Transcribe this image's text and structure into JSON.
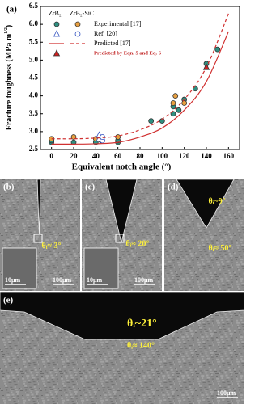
{
  "chart_data": {
    "type": "scatter",
    "panel_label": "(a)",
    "xlabel": "Equivalent notch angle (°)",
    "ylabel": [
      "Fracture toughness (MPa m",
      "1/2",
      ")"
    ],
    "xlim": [
      -10,
      170
    ],
    "xticks": [
      0,
      20,
      40,
      60,
      80,
      100,
      120,
      140,
      160
    ],
    "ylim": [
      2.5,
      6.5
    ],
    "yticks": [
      2.5,
      {
        "value": 3,
        "label": "3.0"
      },
      3.5,
      {
        "value": 4,
        "label": "4.0"
      },
      4.5,
      {
        "value": 5,
        "label": "5.0"
      },
      5.5,
      {
        "value": 6,
        "label": "6.0"
      },
      6.5
    ],
    "legend_headers": [
      "ZrB₂",
      "ZrB₂-SiC"
    ],
    "series": [
      {
        "name": "Experimental [17]",
        "type": "scatter",
        "marker": "circle",
        "filled": true,
        "color": "#2f8f80",
        "x": [
          0,
          0,
          20,
          40,
          45,
          60,
          60,
          90,
          100,
          110,
          110,
          115,
          120,
          130,
          140,
          150
        ],
        "values": [
          2.7,
          2.75,
          2.7,
          2.7,
          2.75,
          2.7,
          2.75,
          3.3,
          3.3,
          3.5,
          3.7,
          3.6,
          3.9,
          4.2,
          4.9,
          5.3
        ]
      },
      {
        "name": "Experimental [17]",
        "type": "scatter",
        "marker": "circle",
        "filled": true,
        "color": "#e8a040",
        "x": [
          0,
          20,
          40,
          60,
          110,
          112,
          120
        ],
        "values": [
          2.8,
          2.85,
          2.8,
          2.85,
          3.8,
          4.0,
          3.8
        ]
      },
      {
        "name": "Ref. [20]",
        "type": "scatter",
        "marker": "triangle",
        "filled": false,
        "color": "#3050c0",
        "x": [
          43,
          43
        ],
        "values": [
          2.8,
          2.9
        ]
      },
      {
        "name": "Ref. [20]",
        "type": "scatter",
        "marker": "circle",
        "filled": false,
        "color": "#3050c0",
        "x": [
          46,
          46
        ],
        "values": [
          2.75,
          2.85
        ]
      },
      {
        "name": "Predicted [17]",
        "type": "line",
        "dashed": false,
        "color": "#d03030",
        "x": [
          0,
          20,
          40,
          60,
          80,
          100,
          120,
          140,
          160
        ],
        "values": [
          2.65,
          2.65,
          2.66,
          2.7,
          2.85,
          3.1,
          3.6,
          4.4,
          5.8
        ]
      },
      {
        "name": "Predicted [17]",
        "type": "line",
        "dashed": true,
        "color": "#d03030",
        "x": [
          0,
          20,
          40,
          60,
          80,
          100,
          120,
          140,
          160
        ],
        "values": [
          2.8,
          2.8,
          2.82,
          2.88,
          3.05,
          3.35,
          3.9,
          4.8,
          6.3
        ]
      },
      {
        "name": "Predicted by Eqn. 5 and Eq. 6",
        "type": "scatter",
        "marker": "triangle",
        "filled": true,
        "color": "#d02020",
        "x": [
          140
        ],
        "values": [
          4.8
        ]
      }
    ]
  },
  "panels": [
    {
      "label": "(b)",
      "annotations": [
        "θᵢ≈ 3°"
      ],
      "scale_bars": [
        "10μm",
        "100μm"
      ]
    },
    {
      "label": "(c)",
      "annotations": [
        "θᵢ≈ 20°"
      ],
      "scale_bars": [
        "10μm",
        "100μm"
      ]
    },
    {
      "label": "(d)",
      "annotations": [
        "θᵢ~9°",
        "θᵢ≈ 50°"
      ],
      "scale_bars": []
    },
    {
      "label": "(e)",
      "annotations": [
        "θᵢ~21°",
        "θᵢ≈ 140°"
      ],
      "scale_bars": [
        "100μm"
      ]
    }
  ]
}
